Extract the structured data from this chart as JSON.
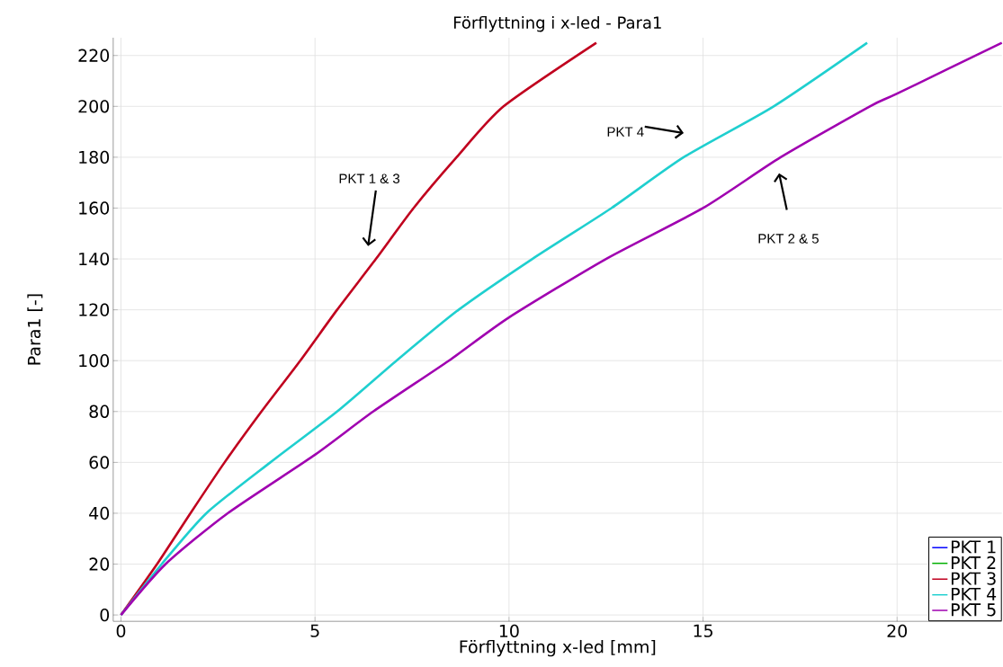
{
  "chart_data": {
    "type": "line",
    "title": "Förflyttning i x-led - Para1",
    "xlabel": "Förflyttning x-led [mm]",
    "ylabel": "Para1 [-]",
    "xlim": [
      -0.2,
      22.7
    ],
    "ylim": [
      -2.5,
      227
    ],
    "xticks": [
      0,
      5,
      10,
      15,
      20
    ],
    "yticks": [
      0,
      20,
      40,
      60,
      80,
      100,
      120,
      140,
      160,
      180,
      200,
      220
    ],
    "grid": true,
    "legend": "bottom right",
    "line_style": "solid",
    "marker": "none",
    "series": [
      {
        "name": "PKT 1",
        "color": "#0000ff",
        "values": [
          null
        ]
      },
      {
        "name": "PKT 2",
        "color": "#00b000",
        "values": [
          null
        ]
      },
      {
        "name": "PKT 3",
        "color": "#c0001e",
        "x": [
          0,
          0.93,
          1.79,
          2.67,
          3.62,
          4.62,
          5.57,
          6.57,
          7.54,
          8.65,
          9.86,
          12.25
        ],
        "values": [
          0,
          20,
          40,
          60,
          80,
          100,
          120,
          140,
          160,
          180,
          200,
          225
        ]
      },
      {
        "name": "PKT 4",
        "color": "#1fcfcf",
        "x": [
          0,
          1.05,
          2.2,
          3.85,
          5.57,
          7.1,
          8.7,
          10.6,
          12.64,
          14.5,
          16.82,
          19.23
        ],
        "values": [
          0,
          20,
          40,
          60,
          80,
          100,
          120,
          140,
          160,
          180,
          200,
          225
        ]
      },
      {
        "name": "PKT 5",
        "color": "#a000b0",
        "x": [
          0,
          1.15,
          2.75,
          5,
          6.5,
          8.45,
          10,
          12.5,
          15,
          17,
          19.3,
          20,
          22.7
        ],
        "values": [
          0,
          20,
          40,
          63,
          80,
          100,
          117,
          140,
          160,
          180,
          200,
          205,
          225
        ]
      }
    ],
    "annotations": [
      "PKT 1 & 3",
      "PKT 4",
      "PKT 2 & 5"
    ]
  }
}
